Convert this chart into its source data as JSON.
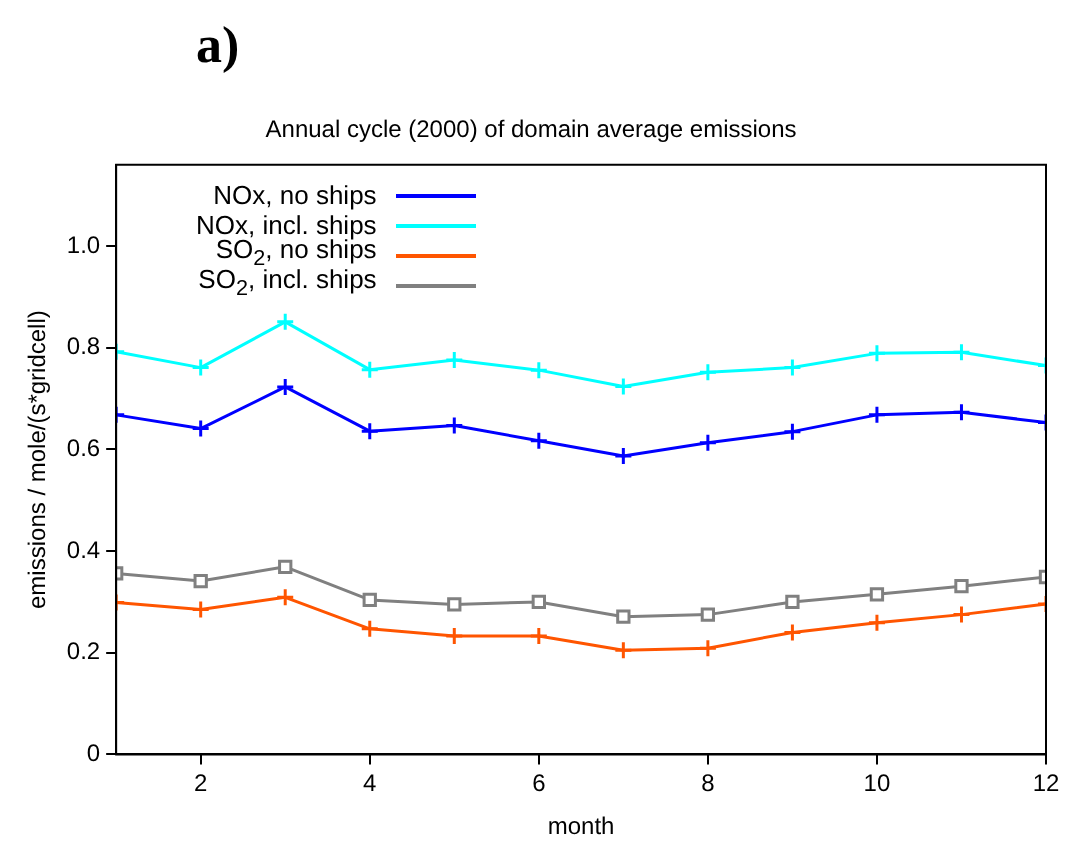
{
  "chart_data": {
    "type": "line",
    "title": "Annual cycle (2000) of domain average emissions",
    "xlabel": "month",
    "ylabel": "emissions / mole/(s*gridcell)",
    "annotations": [
      "a)"
    ],
    "x": [
      1,
      2,
      3,
      4,
      5,
      6,
      7,
      8,
      9,
      10,
      11,
      12
    ],
    "series": [
      {
        "name": "NOx, no ships",
        "color": "#0000ff",
        "marker": "cross",
        "values": [
          0.668,
          0.641,
          0.723,
          0.636,
          0.647,
          0.617,
          0.587,
          0.613,
          0.635,
          0.668,
          0.673,
          0.653
        ]
      },
      {
        "name": "NOx, incl. ships",
        "color": "#00ffff",
        "marker": "cross",
        "values": [
          0.792,
          0.761,
          0.851,
          0.757,
          0.776,
          0.756,
          0.724,
          0.752,
          0.761,
          0.789,
          0.791,
          0.765
        ]
      },
      {
        "name": "SO$_{2}$, no ships",
        "color": "#ff5500",
        "marker": "cross",
        "values": [
          0.299,
          0.285,
          0.309,
          0.247,
          0.233,
          0.233,
          0.205,
          0.209,
          0.24,
          0.259,
          0.275,
          0.296
        ]
      },
      {
        "name": "SO$_{2}$, incl. ships",
        "color": "#808080",
        "marker": "square",
        "values": [
          0.356,
          0.341,
          0.369,
          0.304,
          0.295,
          0.3,
          0.271,
          0.275,
          0.3,
          0.315,
          0.331,
          0.349
        ]
      }
    ],
    "xlim": [
      1,
      12
    ],
    "xticks": [
      2,
      4,
      6,
      8,
      10,
      12
    ],
    "ylim": [
      0,
      1.16
    ],
    "yticks": [
      0,
      0.2,
      0.4,
      0.6,
      0.8,
      {
        "value": 1,
        "label": "1.0"
      }
    ],
    "grid": false,
    "legend": "top left",
    "line_style": "solid"
  }
}
